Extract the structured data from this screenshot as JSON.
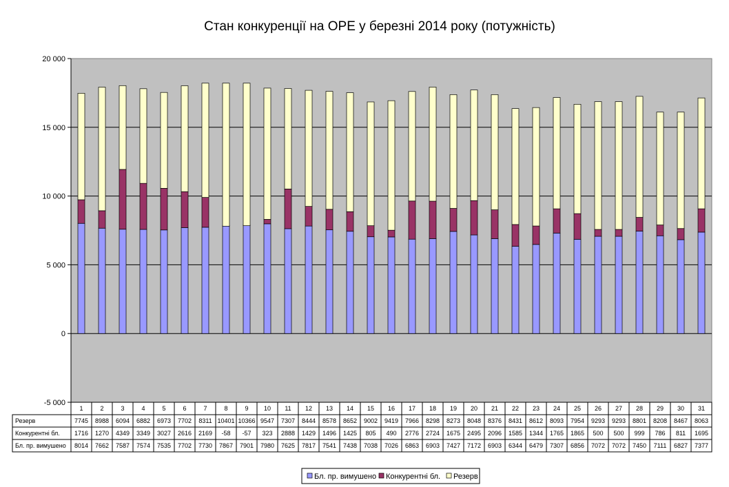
{
  "chart_data": {
    "type": "bar",
    "stacked": true,
    "title": "Стан конкуренції на ОРЕ  у березні 2014 року (потужність)",
    "xlabel": "",
    "ylabel": "",
    "ylim": [
      -5000,
      20000
    ],
    "yticks": [
      -5000,
      0,
      5000,
      10000,
      15000,
      20000
    ],
    "ytick_labels": [
      "-5 000",
      "0",
      "5 000",
      "10 000",
      "15 000",
      "20 000"
    ],
    "grid": true,
    "legend_position": "bottom",
    "categories": [
      "1",
      "2",
      "3",
      "4",
      "5",
      "6",
      "7",
      "8",
      "9",
      "10",
      "11",
      "12",
      "13",
      "14",
      "15",
      "16",
      "17",
      "18",
      "19",
      "20",
      "21",
      "22",
      "23",
      "24",
      "25",
      "26",
      "27",
      "28",
      "29",
      "30",
      "31"
    ],
    "series": [
      {
        "name": "Бл. пр. вимушено",
        "color": "#9999ff",
        "values": [
          8014,
          7662,
          7587,
          7574,
          7535,
          7702,
          7730,
          7867,
          7901,
          7980,
          7625,
          7817,
          7541,
          7438,
          7038,
          7026,
          6863,
          6903,
          7427,
          7172,
          6903,
          6344,
          6479,
          7307,
          6856,
          7072,
          7072,
          7450,
          7111,
          6827,
          7377
        ]
      },
      {
        "name": "Конкурентні бл.",
        "color": "#993366",
        "values": [
          1716,
          1270,
          4349,
          3349,
          3027,
          2616,
          2169,
          -58,
          -57,
          323,
          2888,
          1429,
          1496,
          1425,
          805,
          490,
          2776,
          2724,
          1675,
          2495,
          2096,
          1585,
          1344,
          1765,
          1865,
          500,
          500,
          999,
          786,
          811,
          1695
        ]
      },
      {
        "name": "Резерв",
        "color": "#ffffcc",
        "values": [
          7745,
          8988,
          6094,
          6882,
          6973,
          7702,
          8311,
          10401,
          10366,
          9547,
          7307,
          8444,
          8578,
          8652,
          9002,
          9419,
          7966,
          8298,
          8273,
          8048,
          8376,
          8431,
          8612,
          8093,
          7954,
          9293,
          9293,
          8801,
          8208,
          8467,
          8063
        ]
      }
    ],
    "table_rows": [
      {
        "label": "Резерв",
        "series_index": 2
      },
      {
        "label": "Конкурентні бл.",
        "series_index": 1
      },
      {
        "label": "Бл. пр. вимушено",
        "series_index": 0
      }
    ],
    "legend": [
      "Бл. пр. вимушено",
      "Конкурентні бл.",
      "Резерв"
    ],
    "plot_background": "#c0c0c0"
  }
}
